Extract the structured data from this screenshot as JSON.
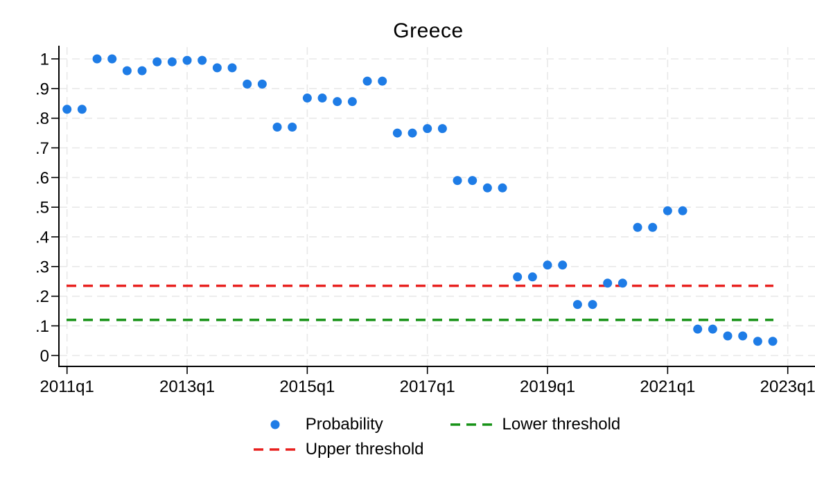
{
  "figure": {
    "title": "Greece"
  },
  "chart_data": {
    "type": "scatter",
    "title": "Greece",
    "x": [
      "2011q1",
      "2011q2",
      "2011q3",
      "2011q4",
      "2012q1",
      "2012q2",
      "2012q3",
      "2012q4",
      "2013q1",
      "2013q2",
      "2013q3",
      "2013q4",
      "2014q1",
      "2014q2",
      "2014q3",
      "2014q4",
      "2015q1",
      "2015q2",
      "2015q3",
      "2015q4",
      "2016q1",
      "2016q2",
      "2016q3",
      "2016q4",
      "2017q1",
      "2017q2",
      "2017q3",
      "2017q4",
      "2018q1",
      "2018q2",
      "2018q3",
      "2018q4",
      "2019q1",
      "2019q2",
      "2019q3",
      "2019q4",
      "2020q1",
      "2020q2",
      "2020q3",
      "2020q4",
      "2021q1",
      "2021q2",
      "2021q3",
      "2021q4",
      "2022q1",
      "2022q2",
      "2022q3",
      "2022q4"
    ],
    "series": [
      {
        "name": "Probability",
        "marker": "circle",
        "color": "#1e7ce6",
        "values": [
          0.83,
          0.83,
          1.0,
          1.0,
          0.96,
          0.96,
          0.99,
          0.99,
          0.995,
          0.995,
          0.97,
          0.97,
          0.915,
          0.915,
          0.77,
          0.77,
          0.868,
          0.868,
          0.856,
          0.856,
          0.925,
          0.925,
          0.75,
          0.75,
          0.765,
          0.765,
          0.59,
          0.59,
          0.565,
          0.565,
          0.265,
          0.265,
          0.305,
          0.305,
          0.172,
          0.172,
          0.244,
          0.244,
          0.432,
          0.432,
          0.488,
          0.488,
          0.089,
          0.089,
          0.066,
          0.066,
          0.048,
          0.048
        ]
      }
    ],
    "thresholds": [
      {
        "name": "Upper threshold",
        "value": 0.235,
        "color": "#e8211f",
        "style": "dashed"
      },
      {
        "name": "Lower threshold",
        "value": 0.12,
        "color": "#169216",
        "style": "dashed"
      }
    ],
    "x_tick_labels": [
      "2011q1",
      "2013q1",
      "2015q1",
      "2017q1",
      "2019q1",
      "2021q1",
      "2023q1"
    ],
    "y_tick_labels": [
      "0",
      ".1",
      ".2",
      ".3",
      ".4",
      ".5",
      ".6",
      ".7",
      ".8",
      ".9",
      "1"
    ],
    "ylim": [
      0,
      1
    ],
    "grid": true,
    "grid_color": "#e8e8e8",
    "axis_color": "#000000",
    "legend_position": "bottom"
  },
  "legend": {
    "items": [
      {
        "label": "Probability",
        "marker": "dot",
        "color": "#1e7ce6"
      },
      {
        "label": "Lower threshold",
        "marker": "dashes",
        "color": "#169216"
      },
      {
        "label": "Upper threshold",
        "marker": "dashes",
        "color": "#e8211f"
      }
    ]
  }
}
